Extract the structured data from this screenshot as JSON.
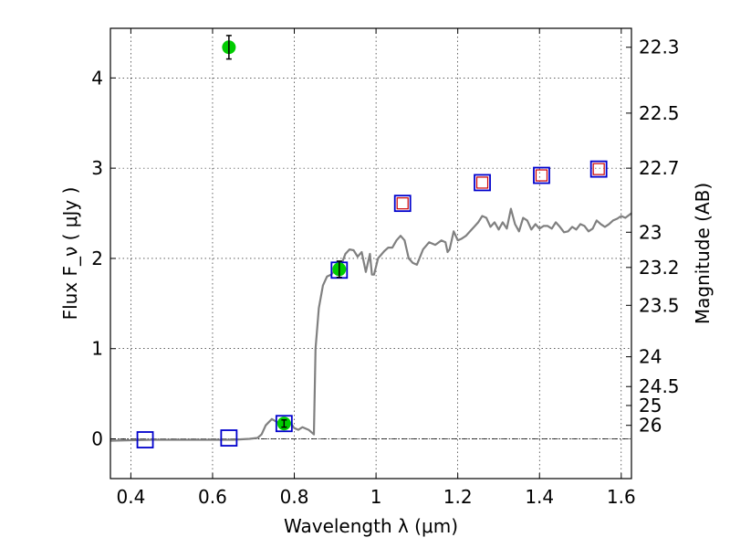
{
  "chart_data": {
    "type": "scatter",
    "xlabel": "Wavelength  λ (μm)",
    "ylabel": "Flux  F_ν  ( μJy )",
    "y2label": "Magnitude (AB)",
    "xlim": [
      0.35,
      1.625
    ],
    "ylim": [
      -0.44,
      4.55
    ],
    "grid": true,
    "x_ticks": [
      {
        "v": 0.4,
        "label": "0.4"
      },
      {
        "v": 0.6,
        "label": "0.6"
      },
      {
        "v": 0.8,
        "label": "0.8"
      },
      {
        "v": 1.0,
        "label": "1"
      },
      {
        "v": 1.2,
        "label": "1.2"
      },
      {
        "v": 1.4,
        "label": "1.4"
      },
      {
        "v": 1.6,
        "label": "1.6"
      }
    ],
    "y_ticks": [
      {
        "v": 0,
        "label": "0"
      },
      {
        "v": 1,
        "label": "1"
      },
      {
        "v": 2,
        "label": "2"
      },
      {
        "v": 3,
        "label": "3"
      },
      {
        "v": 4,
        "label": "4"
      }
    ],
    "mag_ticks": [
      {
        "flux": 4.34,
        "label": "22.3"
      },
      {
        "flux": 3.61,
        "label": "22.5"
      },
      {
        "flux": 3.0,
        "label": "22.7"
      },
      {
        "flux": 2.29,
        "label": "23"
      },
      {
        "flux": 1.9,
        "label": "23.2"
      },
      {
        "flux": 1.48,
        "label": "23.5"
      },
      {
        "flux": 0.91,
        "label": "24"
      },
      {
        "flux": 0.58,
        "label": "24.5"
      },
      {
        "flux": 0.37,
        "label": "25"
      },
      {
        "flux": 0.15,
        "label": "26"
      }
    ],
    "model_spectrum": {
      "color": "#808080",
      "points": [
        [
          0.35,
          -0.02
        ],
        [
          0.45,
          -0.01
        ],
        [
          0.55,
          -0.01
        ],
        [
          0.65,
          -0.01
        ],
        [
          0.69,
          0.0
        ],
        [
          0.71,
          0.01
        ],
        [
          0.72,
          0.05
        ],
        [
          0.73,
          0.15
        ],
        [
          0.745,
          0.22
        ],
        [
          0.76,
          0.18
        ],
        [
          0.775,
          0.22
        ],
        [
          0.79,
          0.18
        ],
        [
          0.8,
          0.12
        ],
        [
          0.81,
          0.1
        ],
        [
          0.82,
          0.13
        ],
        [
          0.835,
          0.1
        ],
        [
          0.848,
          0.05
        ],
        [
          0.852,
          1.0
        ],
        [
          0.86,
          1.45
        ],
        [
          0.87,
          1.7
        ],
        [
          0.88,
          1.8
        ],
        [
          0.89,
          1.82
        ],
        [
          0.9,
          1.87
        ],
        [
          0.915,
          1.93
        ],
        [
          0.925,
          2.05
        ],
        [
          0.935,
          2.1
        ],
        [
          0.945,
          2.09
        ],
        [
          0.955,
          2.02
        ],
        [
          0.965,
          2.07
        ],
        [
          0.975,
          1.85
        ],
        [
          0.985,
          2.05
        ],
        [
          0.99,
          1.82
        ],
        [
          0.995,
          1.82
        ],
        [
          1.005,
          2.0
        ],
        [
          1.02,
          2.08
        ],
        [
          1.03,
          2.12
        ],
        [
          1.04,
          2.12
        ],
        [
          1.05,
          2.2
        ],
        [
          1.06,
          2.25
        ],
        [
          1.07,
          2.2
        ],
        [
          1.08,
          2.0
        ],
        [
          1.09,
          1.95
        ],
        [
          1.1,
          1.93
        ],
        [
          1.115,
          2.1
        ],
        [
          1.13,
          2.18
        ],
        [
          1.145,
          2.15
        ],
        [
          1.16,
          2.2
        ],
        [
          1.17,
          2.18
        ],
        [
          1.175,
          2.07
        ],
        [
          1.18,
          2.1
        ],
        [
          1.19,
          2.3
        ],
        [
          1.2,
          2.2
        ],
        [
          1.21,
          2.22
        ],
        [
          1.22,
          2.25
        ],
        [
          1.23,
          2.3
        ],
        [
          1.24,
          2.35
        ],
        [
          1.25,
          2.4
        ],
        [
          1.26,
          2.47
        ],
        [
          1.27,
          2.45
        ],
        [
          1.28,
          2.35
        ],
        [
          1.29,
          2.4
        ],
        [
          1.3,
          2.32
        ],
        [
          1.31,
          2.4
        ],
        [
          1.32,
          2.33
        ],
        [
          1.33,
          2.55
        ],
        [
          1.34,
          2.38
        ],
        [
          1.35,
          2.3
        ],
        [
          1.36,
          2.45
        ],
        [
          1.37,
          2.42
        ],
        [
          1.38,
          2.32
        ],
        [
          1.39,
          2.38
        ],
        [
          1.4,
          2.33
        ],
        [
          1.41,
          2.36
        ],
        [
          1.42,
          2.36
        ],
        [
          1.43,
          2.33
        ],
        [
          1.44,
          2.4
        ],
        [
          1.45,
          2.35
        ],
        [
          1.46,
          2.29
        ],
        [
          1.47,
          2.3
        ],
        [
          1.48,
          2.35
        ],
        [
          1.49,
          2.32
        ],
        [
          1.5,
          2.38
        ],
        [
          1.51,
          2.36
        ],
        [
          1.52,
          2.3
        ],
        [
          1.53,
          2.33
        ],
        [
          1.54,
          2.42
        ],
        [
          1.55,
          2.38
        ],
        [
          1.56,
          2.35
        ],
        [
          1.57,
          2.38
        ],
        [
          1.58,
          2.42
        ],
        [
          1.59,
          2.44
        ],
        [
          1.6,
          2.47
        ],
        [
          1.61,
          2.45
        ],
        [
          1.625,
          2.5
        ]
      ]
    },
    "observed": {
      "color": "#00cc00",
      "points": [
        {
          "x": 0.64,
          "y": 4.34,
          "yerr": 0.13
        },
        {
          "x": 0.775,
          "y": 0.17,
          "yerr": 0.04
        },
        {
          "x": 0.91,
          "y": 1.88,
          "yerr": 0.09
        }
      ]
    },
    "model_photometry_blue": {
      "color": "#0000cc",
      "points": [
        {
          "x": 0.435,
          "y": -0.01
        },
        {
          "x": 0.64,
          "y": 0.01
        },
        {
          "x": 0.775,
          "y": 0.17
        },
        {
          "x": 0.91,
          "y": 1.87
        },
        {
          "x": 1.065,
          "y": 2.61
        },
        {
          "x": 1.26,
          "y": 2.84
        },
        {
          "x": 1.405,
          "y": 2.92
        },
        {
          "x": 1.545,
          "y": 2.99
        }
      ]
    },
    "model_photometry_red": {
      "color": "#cc0000",
      "points": [
        {
          "x": 1.065,
          "y": 2.61
        },
        {
          "x": 1.26,
          "y": 2.84
        },
        {
          "x": 1.405,
          "y": 2.92
        },
        {
          "x": 1.545,
          "y": 2.99
        }
      ]
    },
    "zero_line": true
  }
}
